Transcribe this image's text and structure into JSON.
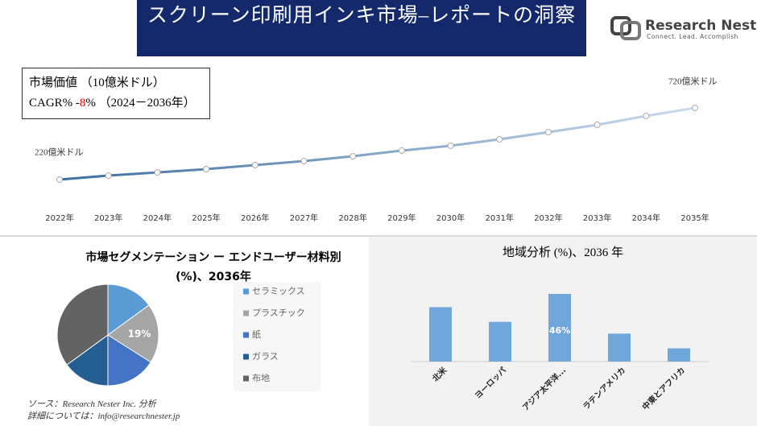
{
  "header": {
    "title": "スクリーン印刷用インキ市場–レポートの洞察",
    "logo_name": "Research Nester",
    "logo_tagline": "Connect. Lead. Accomplish"
  },
  "market_box": {
    "value_label": "市場価値 （10億米ドル）",
    "cagr_prefix": "CAGR% -",
    "cagr_value": "8",
    "cagr_suffix": "% （2024－2036年）"
  },
  "chart_data": [
    {
      "type": "line",
      "categories": [
        "2022年",
        "2023年",
        "2024年",
        "2025年",
        "2026年",
        "2027年",
        "2028年",
        "2029年",
        "2030年",
        "2031年",
        "2032年",
        "2033年",
        "2034年",
        "2035年"
      ],
      "values": [
        220,
        248,
        270,
        293,
        321,
        349,
        383,
        422,
        456,
        501,
        551,
        602,
        664,
        720
      ],
      "value_labels": [
        "220億米ドル",
        null,
        null,
        null,
        null,
        null,
        null,
        null,
        null,
        null,
        null,
        null,
        null,
        "720億米ドル"
      ],
      "colors": [
        "#3f6f9e",
        "#c9dbee"
      ]
    },
    {
      "type": "pie",
      "title": "市場セグメンテーション ー エンドユーザー材料別 (%)、2036年",
      "categories": [
        "セラミックス",
        "プラスチック",
        "紙",
        "ガラス",
        "布地"
      ],
      "values": [
        15,
        19,
        16,
        15,
        35
      ],
      "value_labels": [
        null,
        "19%",
        null,
        null,
        null
      ],
      "colors": [
        "#5b9bd5",
        "#a5a5a5",
        "#4472c4",
        "#255e91",
        "#636363"
      ]
    },
    {
      "type": "bar",
      "title": "地域分析 (%)、2036 年",
      "categories": [
        "北米",
        "ヨーロッパ",
        "アジア太平洋...",
        "ラテンアメリカ",
        "中東とアフリカ"
      ],
      "values": [
        37,
        27,
        46,
        19,
        9
      ],
      "value_labels": [
        null,
        null,
        "46%",
        null,
        null
      ],
      "color": "#6fa6dc"
    }
  ],
  "footer": {
    "source": "ソース：Research Nester Inc. 分析",
    "contact": "詳細については：info@researchnester.jp"
  }
}
